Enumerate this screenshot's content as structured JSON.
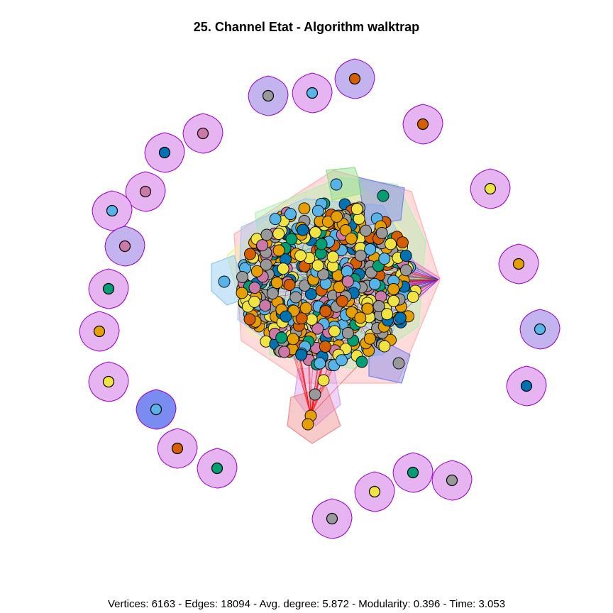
{
  "title": "25. Channel Etat - Algorithm walktrap",
  "caption": "Vertices: 6163 - Edges: 18094 - Avg. degree: 5.872 - Modularity: 0.396 - Time: 3.053",
  "palette": {
    "vertex_colors": [
      "#E69F00",
      "#F0E442",
      "#56B4E9",
      "#009E73",
      "#0072B2",
      "#D55E00",
      "#CC79A7",
      "#999999"
    ],
    "community_fills": [
      "#E6A8F0",
      "#B9A8F0",
      "#7A86F0",
      "#F08C8C",
      "#8CF08C",
      "#F0F08C",
      "#8CC8F0",
      "#F08CC8"
    ],
    "community_border": "#9B00C8",
    "edge_colors": [
      "#FF0000",
      "#00C800",
      "#0000FF",
      "#FF00C8"
    ]
  },
  "isolated_communities": [
    {
      "community": "violet-lavender",
      "vertex_color": "#999999"
    },
    {
      "community": "pink-lavender",
      "vertex_color": "#56B4E9"
    },
    {
      "community": "violet-lavender",
      "vertex_color": "#D55E00"
    },
    {
      "community": "pink-lavender",
      "vertex_color": "#D55E00"
    },
    {
      "community": "pink-lavender",
      "vertex_color": "#CC79A7"
    },
    {
      "community": "pink-lavender",
      "vertex_color": "#0072B2"
    },
    {
      "community": "pink-lavender",
      "vertex_color": "#CC79A7"
    },
    {
      "community": "pink-lavender",
      "vertex_color": "#56B4E9"
    },
    {
      "community": "violet-lavender",
      "vertex_color": "#CC79A7"
    },
    {
      "community": "pink-lavender",
      "vertex_color": "#009E73"
    },
    {
      "community": "pink-lavender",
      "vertex_color": "#E69F00"
    },
    {
      "community": "pink-lavender",
      "vertex_color": "#F0E442"
    },
    {
      "community": "blue",
      "vertex_color": "#56B4E9"
    },
    {
      "community": "pink-lavender",
      "vertex_color": "#D55E00"
    },
    {
      "community": "pink-lavender",
      "vertex_color": "#009E73"
    },
    {
      "community": "pink-lavender",
      "vertex_color": "#F0E442"
    },
    {
      "community": "pink-lavender",
      "vertex_color": "#E69F00"
    },
    {
      "community": "violet-lavender",
      "vertex_color": "#56B4E9"
    },
    {
      "community": "pink-lavender",
      "vertex_color": "#0072B2"
    },
    {
      "community": "pink-lavender",
      "vertex_color": "#009E73"
    },
    {
      "community": "pink-lavender",
      "vertex_color": "#999999"
    },
    {
      "community": "pink-lavender",
      "vertex_color": "#F0E442"
    },
    {
      "community": "pink-lavender",
      "vertex_color": "#999999"
    }
  ]
}
